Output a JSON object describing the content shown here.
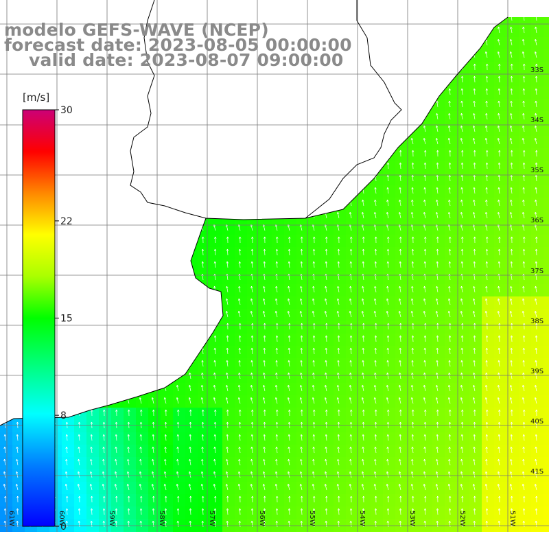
{
  "title": {
    "line1": "modelo GEFS-WAVE (NCEP)",
    "line2": "forecast date: 2023-08-05 00:00:00",
    "line3": "valid date: 2023-08-07 09:00:00"
  },
  "colorbar": {
    "unit": "[m/s]",
    "ticks": [
      "30",
      "22",
      "15",
      "8",
      "0"
    ],
    "tick_values": [
      30,
      22,
      15,
      8,
      0
    ],
    "range": [
      0,
      30
    ],
    "colors": [
      "#0000ff",
      "#00ccff",
      "#00ffff",
      "#00ff00",
      "#ffff00",
      "#ff8800",
      "#ff0000",
      "#cc0077"
    ]
  },
  "map": {
    "lat_labels": [
      "33S",
      "34S",
      "35S",
      "36S",
      "37S",
      "38S",
      "39S",
      "40S",
      "41S"
    ],
    "lon_labels": [
      "61W",
      "60W",
      "59W",
      "58W",
      "57W",
      "56W",
      "55W",
      "54W",
      "53W",
      "52W",
      "51W"
    ],
    "field_description_colors": {
      "land": "#ffffff",
      "coast": "#000000",
      "grid": "#777777",
      "arrows": "#ffffff"
    }
  }
}
